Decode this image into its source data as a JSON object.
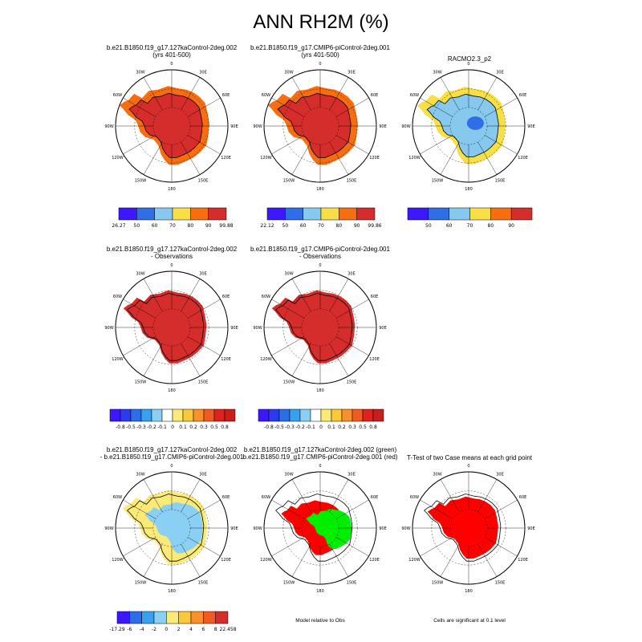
{
  "title": "ANN RH2M (%)",
  "colors": {
    "abs_scale": [
      "#3c17ff",
      "#2f6ee6",
      "#87c8ee",
      "#f7df45",
      "#f76e10",
      "#d52c2c"
    ],
    "diff_scale": [
      "#3c17ff",
      "#2a3bf2",
      "#2c6ee8",
      "#38a0ee",
      "#8ad0f4",
      "#ffffff",
      "#fbea78",
      "#fbc83c",
      "#f9902c",
      "#f05b24",
      "#e0221e",
      "#c81e1e"
    ],
    "ttest_case1": "#00ee00",
    "ttest_case2": "#ff0000"
  },
  "panels": {
    "case1": {
      "title_line1": "b.e21.B1850.f19_g17.127kaControl-2deg.002",
      "title_line2": "(yrs 401-500)"
    },
    "case2": {
      "title_line1": "b.e21.B1850.f19_g17.CMIP6-piControl-2deg.001",
      "title_line2": "(yrs 401-500)"
    },
    "obs": {
      "title_line1": "RACMO2.3_p2",
      "title_line2": ""
    },
    "case1_minus_obs": {
      "title_line1": "b.e21.B1850.f19_g17.127kaControl-2deg.002",
      "title_line2": "- Observations"
    },
    "case2_minus_obs": {
      "title_line1": "b.e21.B1850.f19_g17.CMIP6-piControl-2deg.001",
      "title_line2": "- Observations"
    },
    "case1_minus_case2": {
      "title_line1": "b.e21.B1850.f19_g17.127kaControl-2deg.002",
      "title_line2": "- b.e21.B1850.f19_g17.CMIP6-piControl-2deg.001"
    },
    "model_rel_obs": {
      "title_line1": "b.e21.B1850.f19_g17.127kaControl-2deg.002 (green)",
      "title_line2": "b.e21.B1850.f19_g17.CMIP6-piControl-2deg.001 (red)",
      "note": "Model relative to Obs"
    },
    "ttest": {
      "title_line1": "T-Test of two Case means at each grid point",
      "title_line2": "",
      "note": "Cells are significant at 0.1 level"
    }
  },
  "map_labels": [
    "0",
    "30E",
    "60E",
    "90E",
    "120E",
    "150E",
    "180",
    "150W",
    "120W",
    "90W",
    "60W",
    "30W"
  ],
  "chart_data": [
    {
      "type": "heatmap",
      "panel": "case1",
      "colorbar_labels": [
        "26.27",
        "50",
        "60",
        "70",
        "80",
        "90",
        "99.88"
      ]
    },
    {
      "type": "heatmap",
      "panel": "case2",
      "colorbar_labels": [
        "22.12",
        "50",
        "60",
        "70",
        "80",
        "90",
        "99.86"
      ]
    },
    {
      "type": "heatmap",
      "panel": "obs",
      "colorbar_labels": [
        "50",
        "60",
        "70",
        "80",
        "90"
      ]
    },
    {
      "type": "heatmap",
      "panel": "case1_minus_obs",
      "colorbar_labels": [
        "-0.8",
        "-0.5",
        "-0.3",
        "-0.2",
        "-0.1",
        "0",
        "0.1",
        "0.2",
        "0.3",
        "0.5",
        "0.8"
      ]
    },
    {
      "type": "heatmap",
      "panel": "case2_minus_obs",
      "colorbar_labels": [
        "-0.8",
        "-0.5",
        "-0.3",
        "-0.2",
        "-0.1",
        "0",
        "0.1",
        "0.2",
        "0.3",
        "0.5",
        "0.8"
      ]
    },
    {
      "type": "heatmap",
      "panel": "case1_minus_case2",
      "colorbar_labels": [
        "-17.29",
        "-6",
        "-4",
        "-2",
        "0",
        "2",
        "4",
        "6",
        "8",
        "22.458"
      ]
    }
  ]
}
